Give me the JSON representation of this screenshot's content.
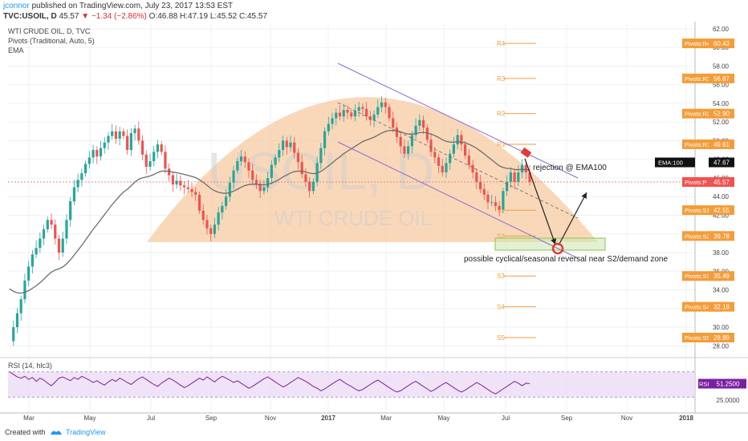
{
  "header": {
    "user": "jconnor",
    "published": "published on TradingView.com, July 23, 2017 13:53 EST",
    "ticker": "TVC:USOIL, D",
    "last": "45.57",
    "change": "▼ −1.34 (−2.86%)",
    "ohlc": "O:46.88 H:47.19 L:45.52 C:45.57"
  },
  "indicators": {
    "line1": "WTI CRUDE OIL, D, TVC",
    "line2": "Pivots (Traditional, Auto, 5)",
    "line3": "EMA",
    "rsi": "RSI (14, hlc3)"
  },
  "watermark": {
    "symbol": "USOIL, D",
    "name": "WTI CRUDE OIL"
  },
  "annotations": {
    "rejection": "rejection @ EMA100",
    "reversal": "possible cyclical/seasonal reversal near S2/demand zone"
  },
  "footer": {
    "created": "Created with",
    "brand": "TradingView"
  },
  "colors": {
    "up": "#26a69a",
    "down": "#ef5350",
    "ema": "#6d6d6d",
    "dome": "#f7c89b",
    "pivot": "#f39c39",
    "channel": "#8e6bd1",
    "rsi": "#7b1fa2",
    "rsiband": "#e9d7f5"
  },
  "chart_data": {
    "type": "candlestick",
    "x_ticks": [
      "Mar",
      "May",
      "Jul",
      "Sep",
      "Nov",
      "2017",
      "Mar",
      "May",
      "Jul",
      "Sep",
      "Nov",
      "2018"
    ],
    "y_ticks": [
      "62.00",
      "60.00",
      "58.00",
      "56.00",
      "54.00",
      "52.00",
      "50.00",
      "48.00",
      "46.00",
      "44.00",
      "42.00",
      "40.00",
      "38.00",
      "36.00",
      "34.00",
      "32.00",
      "30.00",
      "28.00"
    ],
    "ylim": [
      27,
      62.5
    ],
    "pivots": [
      {
        "name": "R4",
        "axis_label": "Pivots:R4",
        "value": 60.43
      },
      {
        "name": "R3",
        "axis_label": "Pivots:R3",
        "value": 56.67
      },
      {
        "name": "R2",
        "axis_label": "Pivots:R2",
        "value": 52.9
      },
      {
        "name": "R1",
        "axis_label": "Pivots:R1",
        "value": 49.61
      },
      {
        "name": "P",
        "axis_label": "Pivots:P",
        "value": 45.57
      },
      {
        "name": "S1",
        "axis_label": "Pivots:S1",
        "value": 42.55
      },
      {
        "name": "S2",
        "axis_label": "Pivots:S2",
        "value": 39.78
      },
      {
        "name": "S3",
        "axis_label": "Pivots:S3",
        "value": 35.49
      },
      {
        "name": "S4",
        "axis_label": "Pivots:S4",
        "value": 32.19
      },
      {
        "name": "S5",
        "axis_label": "Pivots:S5",
        "value": 28.89
      }
    ],
    "ema": {
      "axis_label": "EMA:100",
      "value": 47.67
    },
    "last_price": 45.57,
    "series_close": [
      28.5,
      30.0,
      31.5,
      33.0,
      35.0,
      36.5,
      37.8,
      38.5,
      39.5,
      40.5,
      41.5,
      41.0,
      39.5,
      38.0,
      39.5,
      41.5,
      43.5,
      45.0,
      45.8,
      46.5,
      47.5,
      48.2,
      49.0,
      48.3,
      49.2,
      49.8,
      50.5,
      51.0,
      50.2,
      51.0,
      50.5,
      49.0,
      50.8,
      51.3,
      50.0,
      48.5,
      47.2,
      47.8,
      48.8,
      49.6,
      48.8,
      47.0,
      46.3,
      45.3,
      45.7,
      45.2,
      45.0,
      44.8,
      44.5,
      44.2,
      42.5,
      41.5,
      40.6,
      40.0,
      41.0,
      42.3,
      43.0,
      44.0,
      45.5,
      46.8,
      47.8,
      48.3,
      47.7,
      46.8,
      45.8,
      45.4,
      44.6,
      45.0,
      46.0,
      47.4,
      48.2,
      49.0,
      50.0,
      49.3,
      49.8,
      48.7,
      47.7,
      46.4,
      45.6,
      44.6,
      45.6,
      47.6,
      49.2,
      51.0,
      51.8,
      52.4,
      53.0,
      52.6,
      53.3,
      53.0,
      52.6,
      53.2,
      53.6,
      53.4,
      52.6,
      52.2,
      52.8,
      53.6,
      54.1,
      53.6,
      52.4,
      51.4,
      50.4,
      49.4,
      48.6,
      49.4,
      50.6,
      51.6,
      52.2,
      51.4,
      50.1,
      48.8,
      48.2,
      47.3,
      46.6,
      47.6,
      48.6,
      49.6,
      50.6,
      49.6,
      48.4,
      47.4,
      46.6,
      45.6,
      44.8,
      44.2,
      43.4,
      43.4,
      43.0,
      42.6,
      44.6,
      45.6,
      46.6,
      45.6,
      46.6,
      47.4,
      46.6,
      45.57
    ],
    "rsi_axis_label": "RSI",
    "rsi_value": "51.2500",
    "rsi_y_tick": "25.0000",
    "rsi_ylim": [
      10,
      90
    ],
    "rsi_bands": [
      30,
      70
    ],
    "series_rsi": [
      70,
      66,
      62,
      60,
      63,
      58,
      61,
      55,
      60,
      57,
      52,
      48,
      54,
      60,
      62,
      59,
      56,
      61,
      58,
      63,
      60,
      57,
      53,
      56,
      52,
      49,
      54,
      58,
      55,
      60,
      57,
      53,
      50,
      55,
      59,
      62,
      58,
      54,
      50,
      47,
      52,
      56,
      60,
      57,
      53,
      49,
      45,
      48,
      52,
      56,
      60,
      57,
      62,
      58,
      54,
      59,
      63,
      60,
      57,
      53,
      56,
      52,
      48,
      44,
      47,
      51,
      55,
      59,
      62,
      58,
      54,
      50,
      46,
      49,
      53,
      57,
      61,
      58,
      55,
      51,
      47,
      44,
      40,
      43,
      47,
      51,
      55,
      58,
      54,
      50,
      47,
      43,
      40,
      42,
      46,
      50,
      54,
      57,
      53,
      49,
      45,
      41,
      38,
      40,
      44,
      48,
      52,
      55,
      51,
      47,
      43,
      39,
      42,
      46,
      50,
      53,
      49,
      45,
      41,
      38,
      41,
      45,
      49,
      53,
      50,
      46,
      42,
      38,
      35,
      39,
      43,
      47,
      51,
      55,
      52,
      48,
      52,
      51.25
    ]
  }
}
